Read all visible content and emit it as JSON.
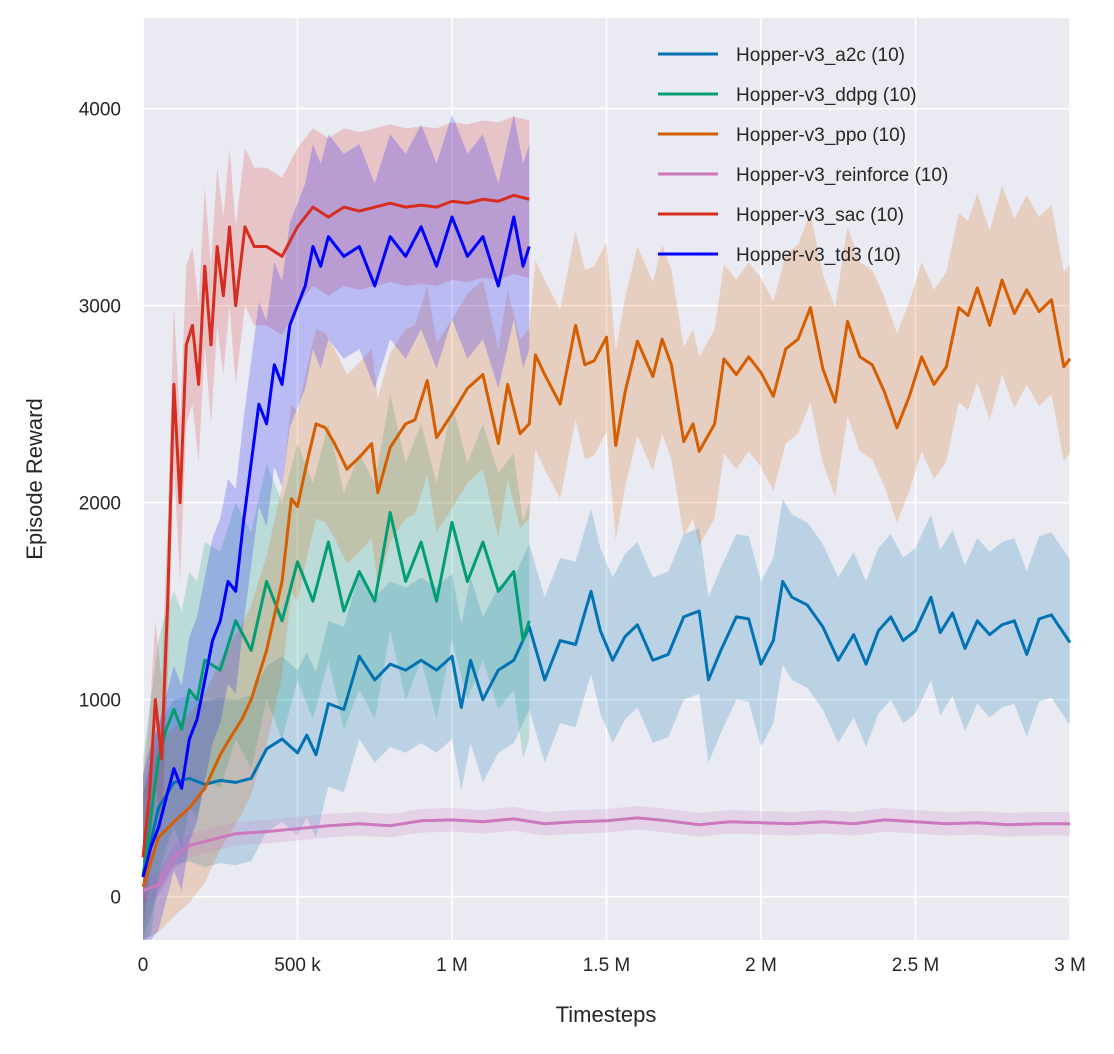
{
  "chart_data": {
    "type": "line",
    "title": "",
    "xlabel": "Timesteps",
    "ylabel": "Episode Reward",
    "xlim": [
      0,
      3000000
    ],
    "ylim": [
      -220,
      4460
    ],
    "grid": true,
    "legend_position": "top-right",
    "background": "#eaeaf2",
    "x_ticks": [
      {
        "value": 0,
        "label": "0"
      },
      {
        "value": 500000,
        "label": "500 k"
      },
      {
        "value": 1000000,
        "label": "1 M"
      },
      {
        "value": 1500000,
        "label": "1.5 M"
      },
      {
        "value": 2000000,
        "label": "2 M"
      },
      {
        "value": 2500000,
        "label": "2.5 M"
      },
      {
        "value": 3000000,
        "label": "3 M"
      }
    ],
    "y_ticks": [
      {
        "value": 0,
        "label": "0"
      },
      {
        "value": 1000,
        "label": "1000"
      },
      {
        "value": 2000,
        "label": "2000"
      },
      {
        "value": 3000,
        "label": "3000"
      },
      {
        "value": 4000,
        "label": "4000"
      }
    ],
    "series": [
      {
        "name": "Hopper-v3_a2c (10)",
        "color": "#0173b2",
        "band": 420,
        "x": [
          0,
          50000,
          100000,
          150000,
          200000,
          250000,
          300000,
          350000,
          400000,
          450000,
          500000,
          530000,
          560000,
          600000,
          650000,
          700000,
          750000,
          800000,
          850000,
          900000,
          950000,
          1000000,
          1030000,
          1060000,
          1100000,
          1150000,
          1200000,
          1250000,
          1300000,
          1350000,
          1400000,
          1450000,
          1480000,
          1520000,
          1560000,
          1600000,
          1650000,
          1700000,
          1750000,
          1800000,
          1830000,
          1870000,
          1920000,
          1960000,
          2000000,
          2040000,
          2070000,
          2100000,
          2150000,
          2200000,
          2250000,
          2300000,
          2340000,
          2380000,
          2420000,
          2460000,
          2500000,
          2550000,
          2580000,
          2620000,
          2660000,
          2700000,
          2740000,
          2780000,
          2820000,
          2860000,
          2900000,
          2940000,
          3000000
        ],
        "y": [
          100,
          450,
          580,
          600,
          570,
          590,
          580,
          600,
          750,
          800,
          730,
          820,
          720,
          980,
          950,
          1220,
          1100,
          1180,
          1150,
          1200,
          1150,
          1220,
          960,
          1200,
          1000,
          1150,
          1200,
          1370,
          1100,
          1300,
          1280,
          1550,
          1350,
          1200,
          1320,
          1380,
          1200,
          1230,
          1420,
          1450,
          1100,
          1250,
          1420,
          1410,
          1180,
          1300,
          1600,
          1520,
          1480,
          1370,
          1200,
          1330,
          1180,
          1350,
          1420,
          1300,
          1350,
          1520,
          1340,
          1440,
          1260,
          1400,
          1330,
          1380,
          1400,
          1230,
          1410,
          1430,
          1290
        ]
      },
      {
        "name": "Hopper-v3_ddpg (10)",
        "color": "#029e73",
        "band": 600,
        "x": [
          0,
          25000,
          50000,
          75000,
          100000,
          125000,
          150000,
          175000,
          200000,
          250000,
          300000,
          350000,
          400000,
          450000,
          500000,
          550000,
          600000,
          650000,
          700000,
          750000,
          800000,
          850000,
          900000,
          950000,
          1000000,
          1050000,
          1100000,
          1150000,
          1200000,
          1230000,
          1250000
        ],
        "y": [
          100,
          400,
          700,
          850,
          950,
          850,
          1050,
          1000,
          1200,
          1150,
          1400,
          1250,
          1600,
          1400,
          1700,
          1500,
          1800,
          1450,
          1650,
          1500,
          1950,
          1600,
          1800,
          1500,
          1900,
          1600,
          1800,
          1550,
          1650,
          1300,
          1400
        ]
      },
      {
        "name": "Hopper-v3_ppo (10)",
        "color": "#d55e00",
        "band": 480,
        "x": [
          0,
          50000,
          100000,
          150000,
          200000,
          250000,
          280000,
          320000,
          350000,
          400000,
          450000,
          480000,
          500000,
          530000,
          560000,
          590000,
          620000,
          660000,
          700000,
          740000,
          760000,
          800000,
          850000,
          880000,
          920000,
          950000,
          1000000,
          1050000,
          1100000,
          1150000,
          1180000,
          1220000,
          1250000,
          1270000,
          1300000,
          1350000,
          1400000,
          1430000,
          1460000,
          1500000,
          1530000,
          1560000,
          1600000,
          1650000,
          1680000,
          1710000,
          1750000,
          1780000,
          1800000,
          1850000,
          1880000,
          1920000,
          1960000,
          2000000,
          2040000,
          2080000,
          2120000,
          2160000,
          2200000,
          2240000,
          2280000,
          2320000,
          2360000,
          2400000,
          2440000,
          2480000,
          2520000,
          2560000,
          2600000,
          2640000,
          2670000,
          2700000,
          2740000,
          2780000,
          2820000,
          2860000,
          2900000,
          2940000,
          2980000,
          3000000
        ],
        "y": [
          50,
          300,
          380,
          450,
          550,
          720,
          800,
          900,
          1000,
          1250,
          1600,
          2020,
          1980,
          2200,
          2400,
          2380,
          2300,
          2170,
          2230,
          2300,
          2050,
          2280,
          2400,
          2420,
          2620,
          2330,
          2450,
          2580,
          2650,
          2300,
          2600,
          2350,
          2400,
          2750,
          2650,
          2500,
          2900,
          2700,
          2720,
          2840,
          2290,
          2560,
          2820,
          2640,
          2830,
          2700,
          2310,
          2400,
          2260,
          2400,
          2730,
          2650,
          2740,
          2660,
          2540,
          2780,
          2830,
          2990,
          2680,
          2510,
          2920,
          2740,
          2700,
          2560,
          2380,
          2540,
          2740,
          2600,
          2690,
          2990,
          2950,
          3090,
          2900,
          3130,
          2960,
          3080,
          2970,
          3030,
          2690,
          2730
        ]
      },
      {
        "name": "Hopper-v3_reinforce (10)",
        "color": "#cc78bc",
        "band": 60,
        "x": [
          0,
          50000,
          100000,
          150000,
          200000,
          250000,
          300000,
          400000,
          500000,
          600000,
          700000,
          800000,
          900000,
          1000000,
          1100000,
          1200000,
          1300000,
          1400000,
          1500000,
          1600000,
          1700000,
          1800000,
          1900000,
          2000000,
          2100000,
          2200000,
          2300000,
          2400000,
          2500000,
          2600000,
          2700000,
          2800000,
          2900000,
          3000000
        ],
        "y": [
          30,
          60,
          200,
          260,
          280,
          300,
          320,
          330,
          345,
          360,
          370,
          360,
          385,
          390,
          380,
          395,
          370,
          380,
          385,
          400,
          385,
          365,
          380,
          375,
          370,
          380,
          370,
          390,
          380,
          370,
          375,
          365,
          370,
          370
        ]
      },
      {
        "name": "Hopper-v3_sac (10)",
        "color": "#d62d20",
        "band": 400,
        "x": [
          0,
          20000,
          40000,
          60000,
          80000,
          100000,
          120000,
          140000,
          160000,
          180000,
          200000,
          220000,
          240000,
          260000,
          280000,
          300000,
          330000,
          360000,
          400000,
          450000,
          500000,
          550000,
          600000,
          650000,
          700000,
          750000,
          800000,
          850000,
          900000,
          950000,
          1000000,
          1050000,
          1100000,
          1150000,
          1200000,
          1250000
        ],
        "y": [
          200,
          500,
          1000,
          700,
          1500,
          2600,
          2000,
          2800,
          2900,
          2600,
          3200,
          2800,
          3300,
          3050,
          3400,
          3000,
          3400,
          3300,
          3300,
          3250,
          3400,
          3500,
          3450,
          3500,
          3480,
          3500,
          3520,
          3500,
          3510,
          3500,
          3530,
          3520,
          3540,
          3530,
          3560,
          3540
        ]
      },
      {
        "name": "Hopper-v3_td3 (10)",
        "color": "#0000ff",
        "band": 520,
        "x": [
          0,
          25000,
          50000,
          75000,
          100000,
          125000,
          150000,
          175000,
          200000,
          225000,
          250000,
          275000,
          300000,
          325000,
          350000,
          375000,
          400000,
          425000,
          450000,
          475000,
          500000,
          525000,
          550000,
          575000,
          600000,
          650000,
          700000,
          750000,
          800000,
          850000,
          900000,
          950000,
          1000000,
          1050000,
          1100000,
          1150000,
          1200000,
          1230000,
          1250000
        ],
        "y": [
          100,
          250,
          350,
          500,
          650,
          550,
          800,
          900,
          1100,
          1300,
          1400,
          1600,
          1550,
          1900,
          2200,
          2500,
          2400,
          2700,
          2600,
          2900,
          3000,
          3100,
          3300,
          3200,
          3350,
          3250,
          3300,
          3100,
          3350,
          3250,
          3400,
          3200,
          3450,
          3250,
          3350,
          3100,
          3450,
          3200,
          3300
        ]
      }
    ]
  }
}
